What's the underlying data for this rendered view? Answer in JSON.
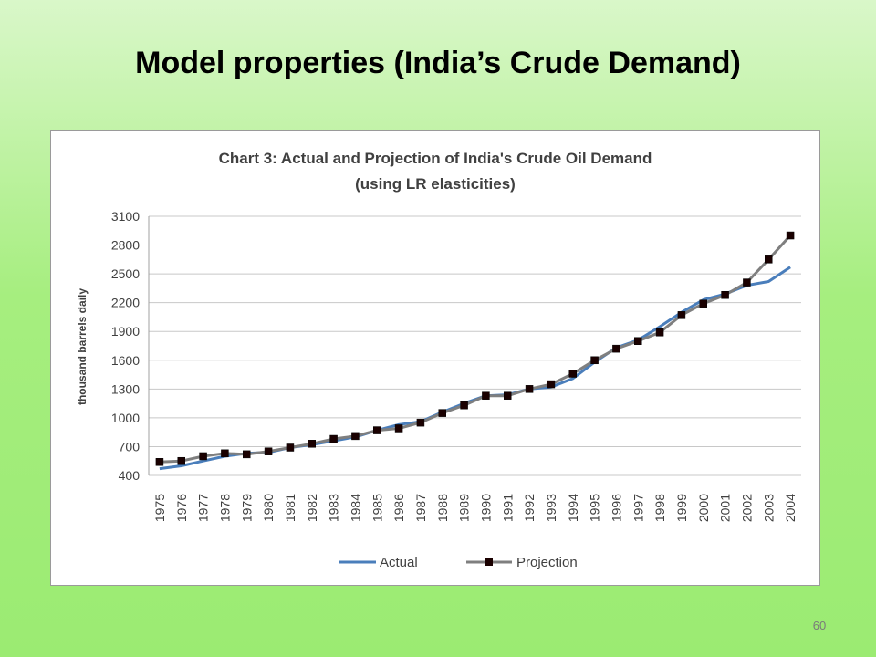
{
  "slide": {
    "title": "Model properties (India’s Crude Demand)",
    "page_number": "60"
  },
  "colors": {
    "actual": "#4a7ebb",
    "projection": "#7f7f7f",
    "marker": "#1a0000",
    "gridline": "#c8c8c8"
  },
  "chart_data": {
    "type": "line",
    "title_lines": [
      "Chart  3: Actual  and Projection of India's Crude Oil Demand",
      "(using LR elasticities)"
    ],
    "xlabel": "",
    "ylabel": "thousand barrels daily",
    "ylim": [
      400,
      3100
    ],
    "yticks": [
      400,
      700,
      1000,
      1300,
      1600,
      1900,
      2200,
      2500,
      2800,
      3100
    ],
    "grid": true,
    "legend_position": "bottom",
    "categories": [
      "1975",
      "1976",
      "1977",
      "1978",
      "1979",
      "1980",
      "1981",
      "1982",
      "1983",
      "1984",
      "1985",
      "1986",
      "1987",
      "1988",
      "1989",
      "1990",
      "1991",
      "1992",
      "1993",
      "1994",
      "1995",
      "1996",
      "1997",
      "1998",
      "1999",
      "2000",
      "2001",
      "2002",
      "2003",
      "2004"
    ],
    "series": [
      {
        "name": "Actual",
        "marker": "none",
        "values": [
          470,
          500,
          550,
          600,
          630,
          640,
          690,
          720,
          760,
          800,
          870,
          930,
          960,
          1060,
          1150,
          1230,
          1240,
          1300,
          1320,
          1410,
          1580,
          1730,
          1810,
          1950,
          2100,
          2230,
          2290,
          2380,
          2420,
          2570
        ]
      },
      {
        "name": "Projection",
        "marker": "square",
        "values": [
          540,
          550,
          600,
          630,
          620,
          650,
          690,
          730,
          780,
          810,
          870,
          890,
          950,
          1050,
          1130,
          1230,
          1230,
          1300,
          1350,
          1460,
          1600,
          1720,
          1800,
          1890,
          2070,
          2190,
          2280,
          2410,
          2650,
          2900
        ]
      }
    ]
  }
}
